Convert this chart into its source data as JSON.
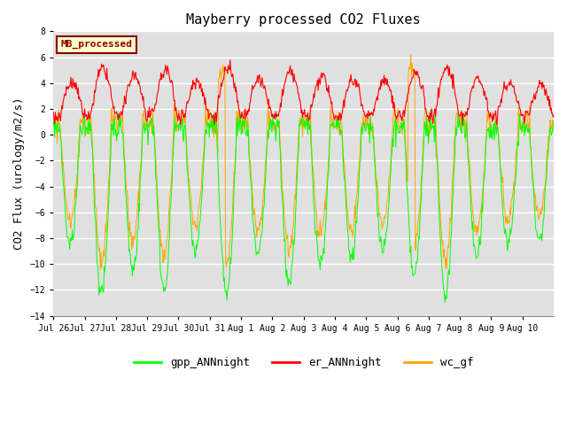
{
  "title": "Mayberry processed CO2 Fluxes",
  "ylabel": "CO2 Flux (urology/m2/s)",
  "ylim": [
    -14,
    8
  ],
  "yticks": [
    -14,
    -12,
    -10,
    -8,
    -6,
    -4,
    -2,
    0,
    2,
    4,
    6,
    8
  ],
  "xtick_labels": [
    "Jul 26",
    "Jul 27",
    "Jul 28",
    "Jul 29",
    "Jul 30",
    "Jul 31",
    "Aug 1",
    "Aug 2",
    "Aug 3",
    "Aug 4",
    "Aug 5",
    "Aug 6",
    "Aug 7",
    "Aug 8",
    "Aug 9",
    "Aug 10"
  ],
  "gpp_color": "#00FF00",
  "er_color": "#FF0000",
  "wc_color": "#FFA500",
  "legend_label": "MB_processed",
  "legend_bg": "#FFFFCC",
  "legend_edge": "#8B0000",
  "bg_color": "#E0E0E0",
  "gpp_label": "gpp_ANNnight",
  "er_label": "er_ANNnight",
  "wc_label": "wc_gf",
  "n_days": 16,
  "pts_per_day": 48
}
